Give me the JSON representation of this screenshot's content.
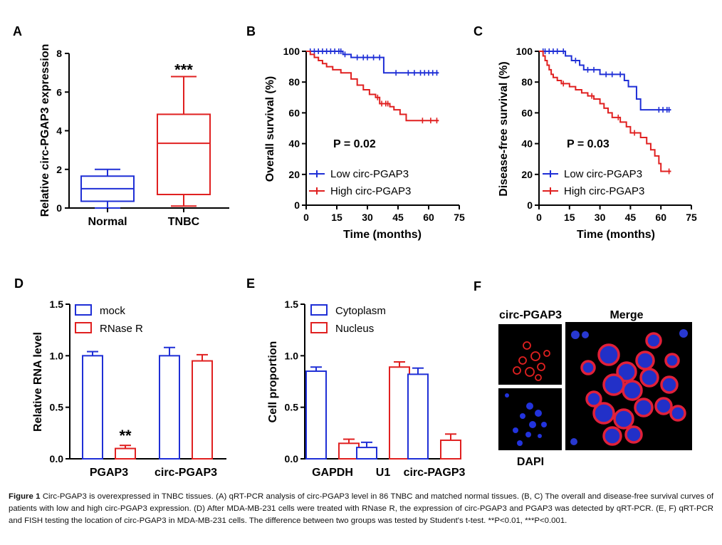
{
  "caption": {
    "figure_label": "Figure 1",
    "text": "Circ-PGAP3 is overexpressed in TNBC tissues. (A) qRT-PCR analysis of circ-PGAP3 level in 86 TNBC and matched normal tissues. (B, C) The overall and disease-free survival curves of patients with low and high circ-PGAP3 expression. (D) After MDA-MB-231 cells were treated with RNase R, the expression of circ-PGAP3 and PGAP3 was detected by qRT-PCR. (E, F) qRT-PCR and FISH testing the location of circ-PGAP3 in MDA-MB-231 cells. The difference between two groups was tested by Student's t-test. **P<0.01, ***P<0.001."
  },
  "colors": {
    "blue": "#1f2fd6",
    "red": "#e02020",
    "axis": "#000000"
  },
  "chart_data": [
    {
      "panel": "A",
      "type": "box",
      "ylabel": "Relative circ-PGAP3 expression",
      "ylim": [
        0,
        8
      ],
      "yticks": [
        0,
        2,
        4,
        6,
        8
      ],
      "categories": [
        "Normal",
        "TNBC"
      ],
      "boxes": [
        {
          "name": "Normal",
          "color": "blue",
          "min": 0.0,
          "q1": 0.35,
          "median": 1.0,
          "q3": 1.65,
          "max": 2.0
        },
        {
          "name": "TNBC",
          "color": "red",
          "min": 0.1,
          "q1": 0.7,
          "median": 3.35,
          "q3": 4.85,
          "max": 6.8
        }
      ],
      "annotation": "***"
    },
    {
      "panel": "B",
      "type": "line",
      "step": true,
      "xlabel": "Time (months)",
      "ylabel": "Overall survival (%)",
      "xlim": [
        0,
        75
      ],
      "ylim": [
        0,
        100
      ],
      "xticks": [
        0,
        15,
        30,
        45,
        60,
        75
      ],
      "yticks": [
        0,
        20,
        40,
        60,
        80,
        100
      ],
      "pvalue": "P = 0.02",
      "legend_position": "bottom-left",
      "series": [
        {
          "name": "Low circ-PGAP3",
          "color": "blue",
          "x": [
            0,
            12,
            18,
            22,
            38,
            38,
            65
          ],
          "y": [
            100,
            100,
            98,
            96,
            92,
            86,
            86
          ],
          "censored_x": [
            2,
            4,
            6,
            8,
            10,
            12,
            14,
            16,
            17,
            19,
            25,
            28,
            30,
            33,
            36,
            44,
            50,
            53,
            56,
            58,
            60,
            62,
            64
          ]
        },
        {
          "name": "High circ-PGAP3",
          "color": "red",
          "x": [
            0,
            2,
            4,
            6,
            8,
            10,
            13,
            17,
            22,
            25,
            28,
            31,
            34,
            36,
            41,
            43,
            46,
            49,
            65
          ],
          "y": [
            100,
            98,
            96,
            94,
            92,
            90,
            88,
            86,
            82,
            78,
            75,
            72,
            70,
            66,
            64,
            62,
            59,
            55,
            55
          ],
          "censored_x": [
            35,
            37,
            39,
            40,
            57,
            61,
            64
          ]
        }
      ]
    },
    {
      "panel": "C",
      "type": "line",
      "step": true,
      "xlabel": "Time (months)",
      "ylabel": "Disease-free survival (%)",
      "xlim": [
        0,
        75
      ],
      "ylim": [
        0,
        100
      ],
      "xticks": [
        0,
        15,
        30,
        45,
        60,
        75
      ],
      "yticks": [
        0,
        20,
        40,
        60,
        80,
        100
      ],
      "pvalue": "P = 0.03",
      "legend_position": "bottom-left",
      "series": [
        {
          "name": "Low circ-PGAP3",
          "color": "blue",
          "x": [
            0,
            11,
            13,
            16,
            20,
            22,
            30,
            42,
            44,
            48,
            50,
            65
          ],
          "y": [
            100,
            100,
            97,
            94,
            91,
            88,
            85,
            81,
            77,
            69,
            62,
            62
          ],
          "censored_x": [
            2,
            3,
            5,
            7,
            9,
            12,
            18,
            24,
            27,
            33,
            36,
            40,
            59,
            61,
            63,
            64
          ]
        },
        {
          "name": "High circ-PGAP3",
          "color": "red",
          "x": [
            0,
            2,
            3,
            4,
            5,
            6,
            7,
            9,
            11,
            15,
            18,
            21,
            24,
            27,
            30,
            32,
            34,
            36,
            40,
            43,
            45,
            50,
            53,
            55,
            57,
            59,
            60,
            65
          ],
          "y": [
            100,
            97,
            94,
            91,
            88,
            85,
            83,
            81,
            79,
            77,
            75,
            73,
            71,
            69,
            66,
            63,
            60,
            57,
            54,
            51,
            47,
            44,
            40,
            36,
            32,
            27,
            22,
            22
          ],
          "censored_x": [
            12,
            26,
            39,
            47,
            64
          ]
        }
      ]
    },
    {
      "panel": "D",
      "type": "bar",
      "ylabel": "Relative RNA level",
      "ylim": [
        0,
        1.5
      ],
      "yticks": [
        "0.0",
        "0.5",
        "1.0",
        "1.5"
      ],
      "categories": [
        "PGAP3",
        "circ-PGAP3"
      ],
      "legend_position": "top-left",
      "series": [
        {
          "name": "mock",
          "color": "blue",
          "values": [
            1.0,
            1.0
          ],
          "errors": [
            0.04,
            0.08
          ]
        },
        {
          "name": "RNase  R",
          "color": "red",
          "values": [
            0.1,
            0.95
          ],
          "errors": [
            0.03,
            0.06
          ]
        }
      ],
      "annotation": "**"
    },
    {
      "panel": "E",
      "type": "bar",
      "ylabel": "Cell proportion",
      "ylim": [
        0,
        1.5
      ],
      "yticks": [
        "0.0",
        "0.5",
        "1.0",
        "1.5"
      ],
      "categories": [
        "GAPDH",
        "U1",
        "circ-PAGP3"
      ],
      "legend_position": "top-left",
      "series": [
        {
          "name": "Cytoplasm",
          "color": "blue",
          "values": [
            0.85,
            0.11,
            0.82
          ],
          "errors": [
            0.04,
            0.05,
            0.06
          ]
        },
        {
          "name": "Nucleus",
          "color": "red",
          "values": [
            0.15,
            0.89,
            0.18
          ],
          "errors": [
            0.04,
            0.05,
            0.06
          ]
        }
      ]
    }
  ],
  "panel_f": {
    "panel": "F",
    "labels": {
      "top_left": "circ-PGAP3",
      "top_right": "Merge",
      "bottom_left": "DAPI"
    }
  }
}
